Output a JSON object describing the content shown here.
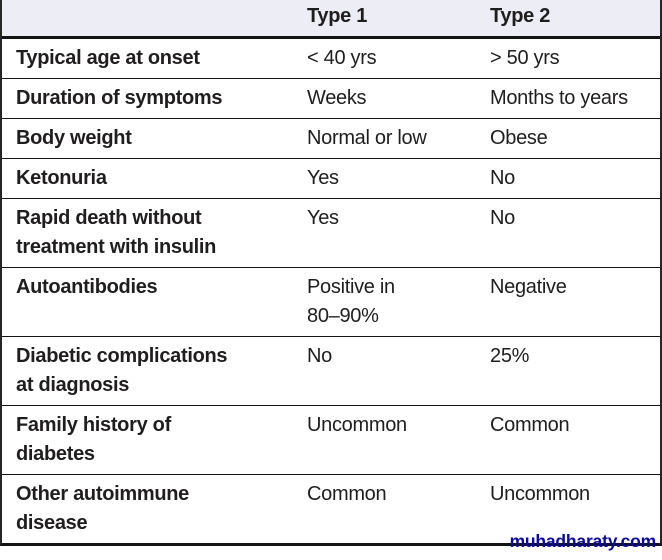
{
  "table": {
    "columns": [
      "",
      "Type 1",
      "Type 2"
    ],
    "rows": [
      {
        "label": "Typical age at onset",
        "type1": "< 40 yrs",
        "type2": "> 50 yrs"
      },
      {
        "label": "Duration of symptoms",
        "type1": "Weeks",
        "type2": "Months to years"
      },
      {
        "label": "Body weight",
        "type1": "Normal or low",
        "type2": "Obese"
      },
      {
        "label": "Ketonuria",
        "type1": "Yes",
        "type2": "No"
      },
      {
        "label": "Rapid death without\ntreatment with insulin",
        "type1": "Yes",
        "type2": "No"
      },
      {
        "label": "Autoantibodies",
        "type1": "Positive in\n80–90%",
        "type2": "Negative"
      },
      {
        "label": "Diabetic complications\nat diagnosis",
        "type1": "No",
        "type2": "25%"
      },
      {
        "label": "Family history of\ndiabetes",
        "type1": "Uncommon",
        "type2": "Common"
      },
      {
        "label": "Other autoimmune\ndisease",
        "type1": "Common",
        "type2": "Uncommon"
      }
    ]
  },
  "watermark": {
    "label": "muhadharaty.com"
  },
  "colors": {
    "header_bg": "#ecedf5",
    "text": "#1f1d1e",
    "line": "#141414",
    "watermark_blue": "#0a0a9e"
  }
}
